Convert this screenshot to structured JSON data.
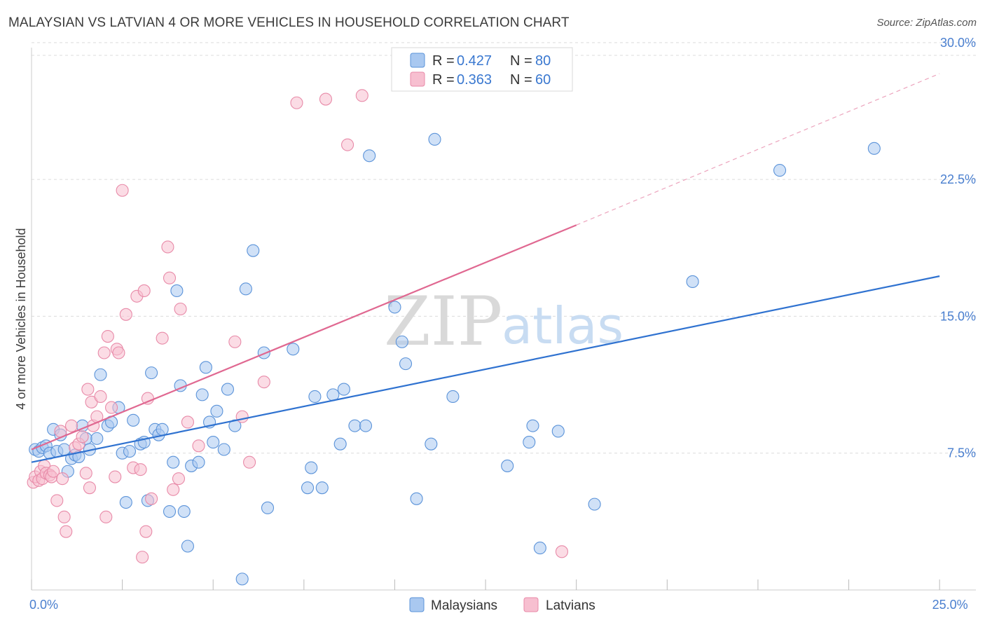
{
  "title": "MALAYSIAN VS LATVIAN 4 OR MORE VEHICLES IN HOUSEHOLD CORRELATION CHART",
  "source": "Source: ZipAtlas.com",
  "watermark": {
    "zip": "ZIP",
    "atlas": "atlas"
  },
  "colors": {
    "malaysian_fill": "#a9c8f0",
    "malaysian_stroke": "#5b93d9",
    "malaysian_line": "#2f72d0",
    "latvian_fill": "#f7bfd0",
    "latvian_stroke": "#e88aa8",
    "latvian_line": "#e06891",
    "grid": "#dcdcdc",
    "tick_label": "#4a7fcf"
  },
  "legend": {
    "rows": [
      {
        "r_label": "R =",
        "r_value": "0.427",
        "n_label": "N =",
        "n_value": "80"
      },
      {
        "r_label": "R =",
        "r_value": "0.363",
        "n_label": "N =",
        "n_value": "60"
      }
    ]
  },
  "chart_data": {
    "type": "scatter",
    "title": "MALAYSIAN VS LATVIAN 4 OR MORE VEHICLES IN HOUSEHOLD CORRELATION CHART",
    "xlabel": "",
    "ylabel": "4 or more Vehicles in Household",
    "xlim": [
      0,
      26
    ],
    "ylim": [
      0,
      30.8
    ],
    "x_tick_labels": [
      {
        "value": 0,
        "label": "0.0%"
      },
      {
        "value": 25,
        "label": "25.0%"
      }
    ],
    "y_tick_labels": [
      {
        "value": 7.5,
        "label": "7.5%"
      },
      {
        "value": 15.0,
        "label": "15.0%"
      },
      {
        "value": 22.5,
        "label": "22.5%"
      },
      {
        "value": 30.0,
        "label": "30.0%"
      }
    ],
    "x_minor_ticks": [
      0,
      2.5,
      5,
      7.5,
      10,
      12.5,
      15,
      17.5,
      20,
      22.5,
      25
    ],
    "series": [
      {
        "name": "Malaysians",
        "r": 0.427,
        "n": 80,
        "trend": {
          "x0": 0,
          "y0": 7.0,
          "x1": 25,
          "y1": 17.2
        },
        "points": [
          [
            0.1,
            7.7
          ],
          [
            0.2,
            7.6
          ],
          [
            0.3,
            7.8
          ],
          [
            0.4,
            7.9
          ],
          [
            0.5,
            7.5
          ],
          [
            0.6,
            8.8
          ],
          [
            0.7,
            7.6
          ],
          [
            0.8,
            8.5
          ],
          [
            0.9,
            7.7
          ],
          [
            1.0,
            6.5
          ],
          [
            1.1,
            7.2
          ],
          [
            1.2,
            7.4
          ],
          [
            1.3,
            7.3
          ],
          [
            1.4,
            9.0
          ],
          [
            1.5,
            8.3
          ],
          [
            1.6,
            7.7
          ],
          [
            1.8,
            8.3
          ],
          [
            1.9,
            11.8
          ],
          [
            2.1,
            9.0
          ],
          [
            2.2,
            9.2
          ],
          [
            2.4,
            10.0
          ],
          [
            2.5,
            7.5
          ],
          [
            2.6,
            4.8
          ],
          [
            2.7,
            7.6
          ],
          [
            2.8,
            9.3
          ],
          [
            3.0,
            8.0
          ],
          [
            3.1,
            8.1
          ],
          [
            3.2,
            4.9
          ],
          [
            3.3,
            11.9
          ],
          [
            3.4,
            8.8
          ],
          [
            3.5,
            8.5
          ],
          [
            3.6,
            8.8
          ],
          [
            3.8,
            4.3
          ],
          [
            3.9,
            7.0
          ],
          [
            4.0,
            16.4
          ],
          [
            4.1,
            11.2
          ],
          [
            4.2,
            4.3
          ],
          [
            4.3,
            2.4
          ],
          [
            4.4,
            6.8
          ],
          [
            4.6,
            7.0
          ],
          [
            4.7,
            10.7
          ],
          [
            4.8,
            12.2
          ],
          [
            4.9,
            9.2
          ],
          [
            5.0,
            8.1
          ],
          [
            5.1,
            9.8
          ],
          [
            5.3,
            7.7
          ],
          [
            5.4,
            11.0
          ],
          [
            5.6,
            9.0
          ],
          [
            5.8,
            0.6
          ],
          [
            5.9,
            16.5
          ],
          [
            6.1,
            18.6
          ],
          [
            6.4,
            13.0
          ],
          [
            6.5,
            4.5
          ],
          [
            7.2,
            13.2
          ],
          [
            7.6,
            5.6
          ],
          [
            7.7,
            6.7
          ],
          [
            7.8,
            10.6
          ],
          [
            8.0,
            5.6
          ],
          [
            8.3,
            10.7
          ],
          [
            8.5,
            8.0
          ],
          [
            8.6,
            11.0
          ],
          [
            8.9,
            9.0
          ],
          [
            9.2,
            9.0
          ],
          [
            9.3,
            23.8
          ],
          [
            10.0,
            15.5
          ],
          [
            10.2,
            13.6
          ],
          [
            10.3,
            12.4
          ],
          [
            10.6,
            5.0
          ],
          [
            11.0,
            8.0
          ],
          [
            11.1,
            24.7
          ],
          [
            11.6,
            10.6
          ],
          [
            13.1,
            6.8
          ],
          [
            13.7,
            8.1
          ],
          [
            13.8,
            9.0
          ],
          [
            14.0,
            2.3
          ],
          [
            14.5,
            8.7
          ],
          [
            15.5,
            4.7
          ],
          [
            18.2,
            16.9
          ],
          [
            20.6,
            23.0
          ],
          [
            23.2,
            24.2
          ]
        ]
      },
      {
        "name": "Latvians",
        "r": 0.363,
        "n": 60,
        "trend": {
          "x0": 0,
          "y0": 7.7,
          "x1": 15,
          "y1": 20.0,
          "dash_x1": 25,
          "dash_y1": 28.3
        },
        "points": [
          [
            0.05,
            5.9
          ],
          [
            0.1,
            6.2
          ],
          [
            0.2,
            6.0
          ],
          [
            0.25,
            6.5
          ],
          [
            0.3,
            6.1
          ],
          [
            0.35,
            6.8
          ],
          [
            0.4,
            6.4
          ],
          [
            0.5,
            6.3
          ],
          [
            0.55,
            6.2
          ],
          [
            0.6,
            6.5
          ],
          [
            0.7,
            4.9
          ],
          [
            0.8,
            8.7
          ],
          [
            0.85,
            6.1
          ],
          [
            0.9,
            4.0
          ],
          [
            0.95,
            3.2
          ],
          [
            1.1,
            9.0
          ],
          [
            1.2,
            7.8
          ],
          [
            1.3,
            8.0
          ],
          [
            1.4,
            8.4
          ],
          [
            1.5,
            6.4
          ],
          [
            1.55,
            11.0
          ],
          [
            1.6,
            5.6
          ],
          [
            1.65,
            10.3
          ],
          [
            1.7,
            9.0
          ],
          [
            1.8,
            9.5
          ],
          [
            1.9,
            10.6
          ],
          [
            2.0,
            13.0
          ],
          [
            2.05,
            4.0
          ],
          [
            2.1,
            13.9
          ],
          [
            2.2,
            10.0
          ],
          [
            2.3,
            6.2
          ],
          [
            2.35,
            13.2
          ],
          [
            2.4,
            13.0
          ],
          [
            2.5,
            21.9
          ],
          [
            2.6,
            15.1
          ],
          [
            2.8,
            6.7
          ],
          [
            2.9,
            16.1
          ],
          [
            3.0,
            6.6
          ],
          [
            3.05,
            1.8
          ],
          [
            3.1,
            16.4
          ],
          [
            3.15,
            3.2
          ],
          [
            3.2,
            10.5
          ],
          [
            3.3,
            5.0
          ],
          [
            3.6,
            13.8
          ],
          [
            3.75,
            18.8
          ],
          [
            3.8,
            17.1
          ],
          [
            3.9,
            5.5
          ],
          [
            4.05,
            6.1
          ],
          [
            4.1,
            15.4
          ],
          [
            4.3,
            9.2
          ],
          [
            4.6,
            7.9
          ],
          [
            5.6,
            13.6
          ],
          [
            5.8,
            9.5
          ],
          [
            6.0,
            7.0
          ],
          [
            6.4,
            11.4
          ],
          [
            7.3,
            26.7
          ],
          [
            8.1,
            26.9
          ],
          [
            8.7,
            24.4
          ],
          [
            9.1,
            27.1
          ],
          [
            14.6,
            2.1
          ]
        ]
      }
    ],
    "bottom_legend": [
      "Malaysians",
      "Latvians"
    ]
  }
}
